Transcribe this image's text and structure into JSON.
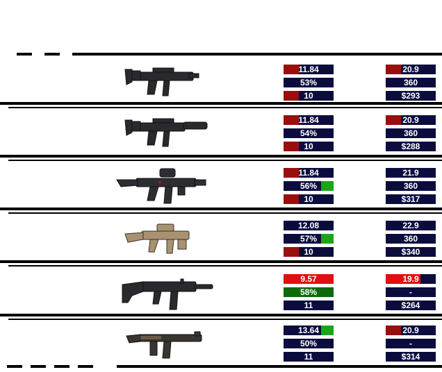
{
  "colors": {
    "background": "#ffffff",
    "cell": "#0b0c3e",
    "worse": "#9a0e0e",
    "much_worse": "#e01010",
    "better": "#1aa41a",
    "much_better": "#0c6a0c"
  },
  "weapons": [
    {
      "icon": "mp5-icon",
      "left": [
        {
          "text": "11.84",
          "bar": "worse",
          "bar_side": "left",
          "bar_fraction": 0.3
        },
        {
          "text": "53%",
          "bar": null
        },
        {
          "text": "10",
          "bar": "worse",
          "bar_side": "left",
          "bar_fraction": 0.3
        }
      ],
      "right": [
        {
          "text": "20.9",
          "bar": "worse",
          "bar_side": "left",
          "bar_fraction": 0.3
        },
        {
          "text": "360",
          "bar": null
        },
        {
          "text": "$293",
          "bar": null
        }
      ]
    },
    {
      "icon": "mp5sd-icon",
      "left": [
        {
          "text": "11.84",
          "bar": "worse",
          "bar_side": "left",
          "bar_fraction": 0.3
        },
        {
          "text": "54%",
          "bar": null
        },
        {
          "text": "10",
          "bar": "worse",
          "bar_side": "left",
          "bar_fraction": 0.3
        }
      ],
      "right": [
        {
          "text": "20.9",
          "bar": "worse",
          "bar_side": "left",
          "bar_fraction": 0.3
        },
        {
          "text": "360",
          "bar": null
        },
        {
          "text": "$288",
          "bar": null
        }
      ]
    },
    {
      "icon": "mp5-tactical-icon",
      "left": [
        {
          "text": "11.84",
          "bar": "worse",
          "bar_side": "left",
          "bar_fraction": 0.3
        },
        {
          "text": "56%",
          "bar": "better",
          "bar_side": "right",
          "bar_fraction": 0.25
        },
        {
          "text": "10",
          "bar": "worse",
          "bar_side": "left",
          "bar_fraction": 0.3
        }
      ],
      "right": [
        {
          "text": "21.9",
          "bar": null
        },
        {
          "text": "360",
          "bar": null
        },
        {
          "text": "$317",
          "bar": null
        }
      ]
    },
    {
      "icon": "mp5k-icon",
      "left": [
        {
          "text": "12.08",
          "bar": null
        },
        {
          "text": "57%",
          "bar": "better",
          "bar_side": "right",
          "bar_fraction": 0.25
        },
        {
          "text": "10",
          "bar": "worse",
          "bar_side": "left",
          "bar_fraction": 0.3
        }
      ],
      "right": [
        {
          "text": "22.9",
          "bar": null
        },
        {
          "text": "360",
          "bar": null
        },
        {
          "text": "$340",
          "bar": null
        }
      ]
    },
    {
      "icon": "ump-icon",
      "left": [
        {
          "text": "9.57",
          "bar": "much_worse",
          "bar_side": "left",
          "bar_fraction": 1.0
        },
        {
          "text": "58%",
          "bar": "much_better",
          "bar_side": "left",
          "bar_fraction": 1.0
        },
        {
          "text": "11",
          "bar": null
        }
      ],
      "right": [
        {
          "text": "19.9",
          "bar": "much_worse",
          "bar_side": "left",
          "bar_fraction": 0.7
        },
        {
          "text": "-",
          "bar": null
        },
        {
          "text": "$264",
          "bar": null
        }
      ]
    },
    {
      "icon": "mp40-icon",
      "left": [
        {
          "text": "13.64",
          "bar": "better",
          "bar_side": "right",
          "bar_fraction": 0.25
        },
        {
          "text": "50%",
          "bar": null
        },
        {
          "text": "11",
          "bar": null
        }
      ],
      "right": [
        {
          "text": "20.9",
          "bar": "worse",
          "bar_side": "left",
          "bar_fraction": 0.3
        },
        {
          "text": "-",
          "bar": null
        },
        {
          "text": "$314",
          "bar": null
        }
      ]
    }
  ]
}
